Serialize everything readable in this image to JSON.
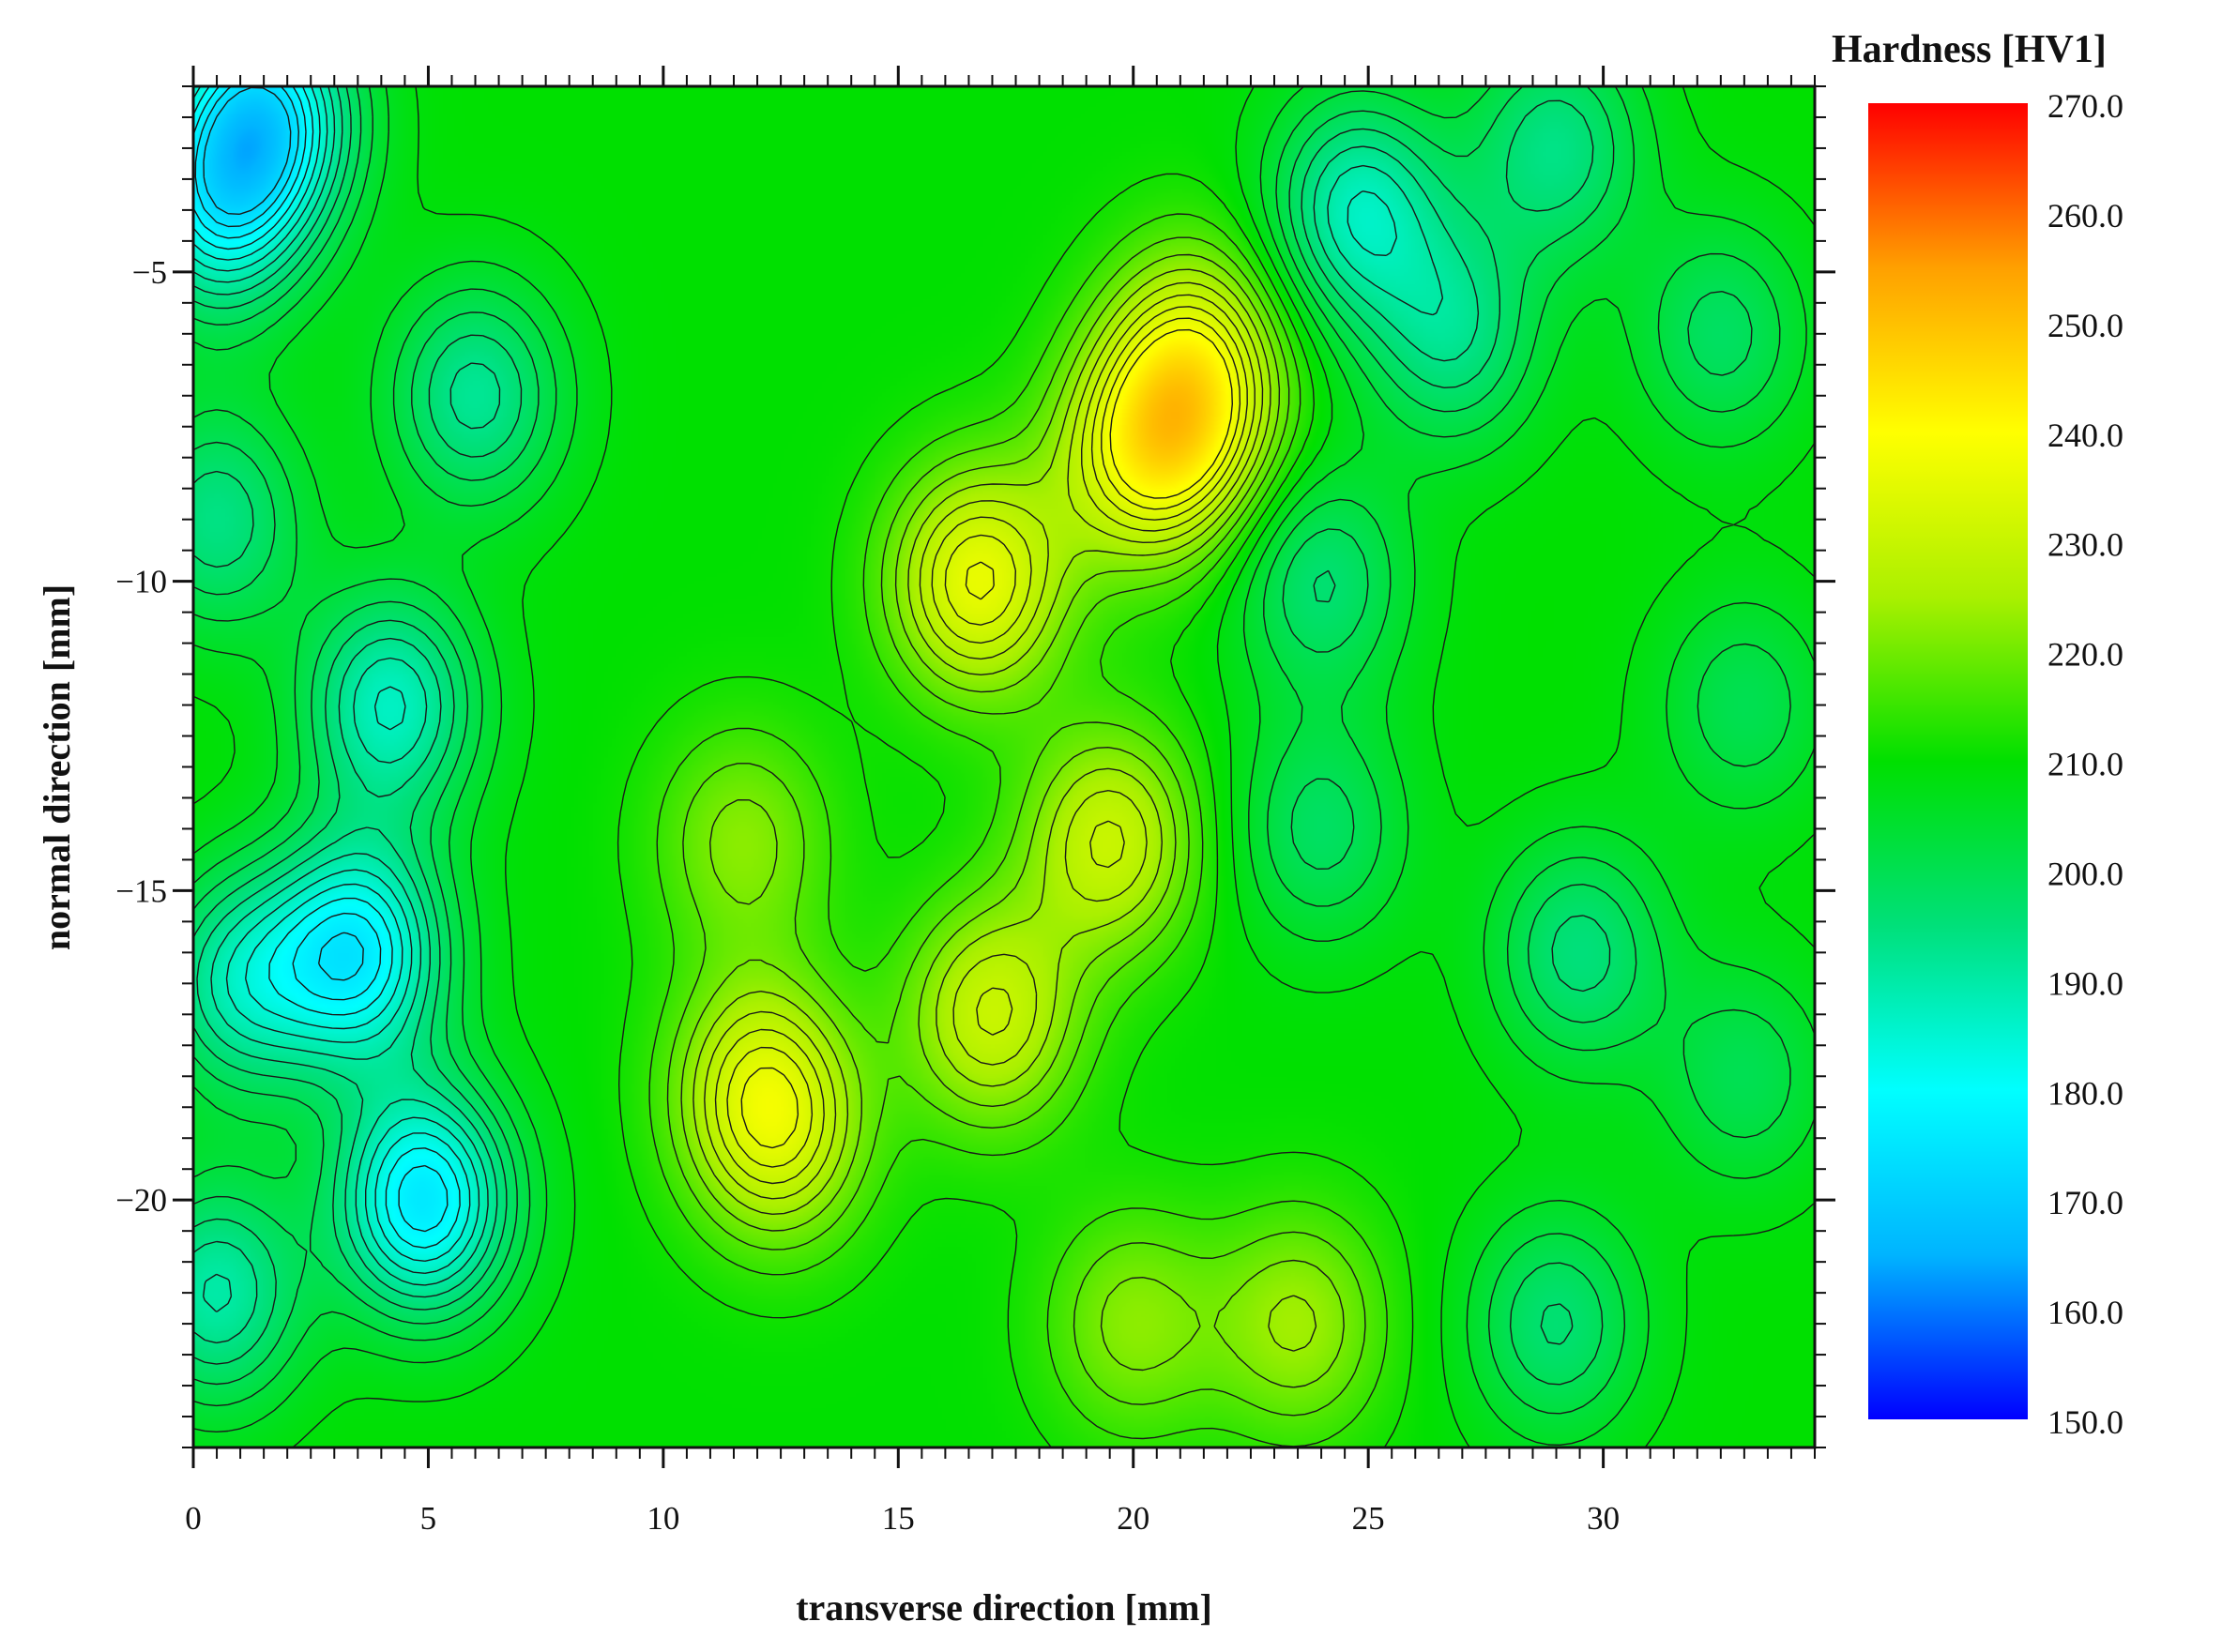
{
  "chart_data": {
    "type": "heatmap",
    "subtype": "contour",
    "xlabel": "transverse direction [mm]",
    "ylabel": "normal direction [mm]",
    "xlim": [
      0,
      34.5
    ],
    "ylim": [
      -24,
      -2
    ],
    "x_ticks": [
      0,
      5,
      10,
      15,
      20,
      25,
      30
    ],
    "y_ticks": [
      -5,
      -10,
      -15,
      -20
    ],
    "colorbar": {
      "title": "Hardness [HV1]",
      "min": 150.0,
      "max": 270.0,
      "tick_labels": [
        "270.0",
        "260.0",
        "250.0",
        "240.0",
        "230.0",
        "220.0",
        "210.0",
        "200.0",
        "190.0",
        "180.0",
        "170.0",
        "160.0",
        "150.0"
      ],
      "colormap": [
        "#0000ff",
        "#00b4ff",
        "#00ffff",
        "#00e07a",
        "#00e000",
        "#aaf000",
        "#ffff00",
        "#ffa000",
        "#ff0000"
      ]
    },
    "background_level": 210,
    "features": [
      {
        "x": 1.5,
        "y": -2.5,
        "value": 176
      },
      {
        "x": 0.5,
        "y": -4.0,
        "value": 186
      },
      {
        "x": 6.0,
        "y": -7.0,
        "value": 192
      },
      {
        "x": 0.5,
        "y": -9.0,
        "value": 194
      },
      {
        "x": 4.2,
        "y": -12.0,
        "value": 187
      },
      {
        "x": 3.5,
        "y": -16.0,
        "value": 178
      },
      {
        "x": 4.9,
        "y": -20.0,
        "value": 176
      },
      {
        "x": 1.0,
        "y": -16.5,
        "value": 190
      },
      {
        "x": 0.5,
        "y": -21.5,
        "value": 190
      },
      {
        "x": 16.7,
        "y": -10.0,
        "value": 236
      },
      {
        "x": 20.0,
        "y": -8.0,
        "value": 228
      },
      {
        "x": 21.2,
        "y": -7.5,
        "value": 230
      },
      {
        "x": 21.3,
        "y": -6.2,
        "value": 226
      },
      {
        "x": 19.5,
        "y": -14.2,
        "value": 230
      },
      {
        "x": 17.0,
        "y": -17.0,
        "value": 230
      },
      {
        "x": 12.5,
        "y": -19.0,
        "value": 226
      },
      {
        "x": 12.0,
        "y": -18.0,
        "value": 225
      },
      {
        "x": 24.8,
        "y": -4.0,
        "value": 188
      },
      {
        "x": 26.8,
        "y": -6.0,
        "value": 194
      },
      {
        "x": 24.0,
        "y": -10.0,
        "value": 196
      },
      {
        "x": 24.0,
        "y": -14.0,
        "value": 198
      },
      {
        "x": 29.5,
        "y": -16.0,
        "value": 195
      },
      {
        "x": 32.5,
        "y": -6.0,
        "value": 198
      },
      {
        "x": 33.0,
        "y": -12.0,
        "value": 200
      },
      {
        "x": 29.0,
        "y": -22.0,
        "value": 196
      },
      {
        "x": 20.0,
        "y": -22.0,
        "value": 222
      },
      {
        "x": 23.5,
        "y": -22.0,
        "value": 224
      },
      {
        "x": 11.7,
        "y": -14.2,
        "value": 222
      },
      {
        "x": 29.0,
        "y": -3.0,
        "value": 194
      },
      {
        "x": 33.0,
        "y": -18.0,
        "value": 200
      }
    ]
  }
}
